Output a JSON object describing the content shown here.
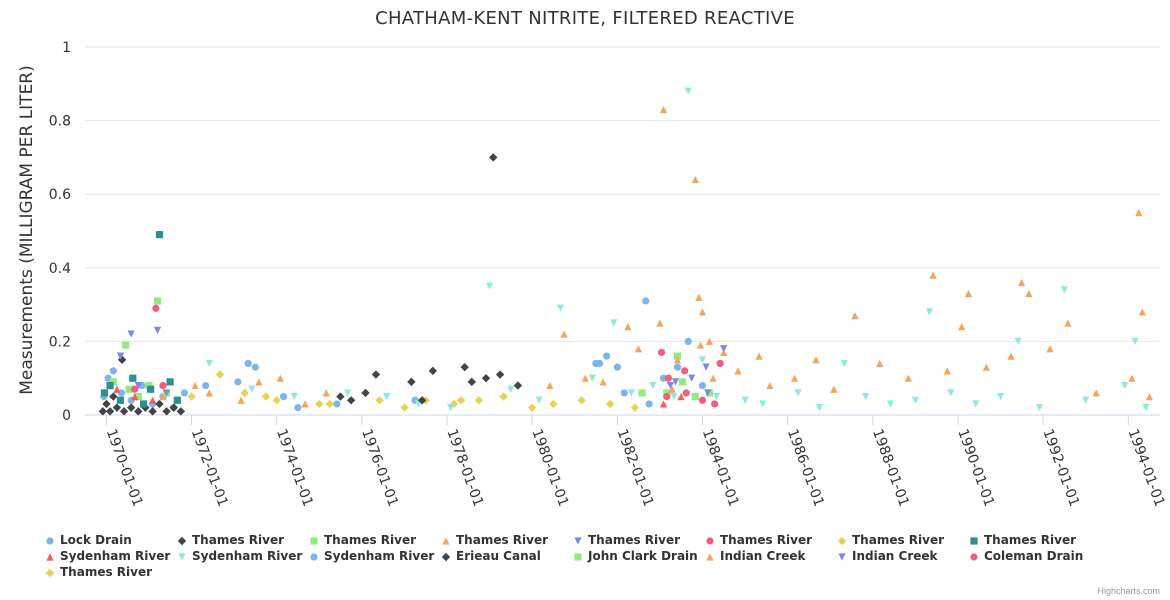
{
  "chart_data": {
    "type": "scatter",
    "title": "CHATHAM-KENT NITRITE, FILTERED REACTIVE",
    "ylabel": "Measurements (MILLIGRAM PER LITER)",
    "xlabel": "",
    "xlim": [
      "1969-07-01",
      "1994-09-30"
    ],
    "ylim": [
      0,
      1
    ],
    "yticks": [
      0,
      0.2,
      0.4,
      0.6,
      0.8,
      1
    ],
    "ytick_labels": [
      "0",
      "0.2",
      "0.4",
      "0.6",
      "0.8",
      "1"
    ],
    "xticks": [
      "1970-01-01",
      "1972-01-01",
      "1974-01-01",
      "1976-01-01",
      "1978-01-01",
      "1980-01-01",
      "1982-01-01",
      "1984-01-01",
      "1986-01-01",
      "1988-01-01",
      "1990-01-01",
      "1992-01-01",
      "1994-01-01"
    ],
    "grid": "horizontal",
    "legend_position": "bottom",
    "series": [
      {
        "name": "Lock Drain",
        "color": "#7cb5ec",
        "marker": "circle",
        "points": [
          [
            "1969-12-10",
            0.05
          ],
          [
            "1970-01-15",
            0.1
          ],
          [
            "1970-03-01",
            0.12
          ],
          [
            "1970-05-10",
            0.06
          ],
          [
            "1970-08-01",
            0.04
          ],
          [
            "1970-11-01",
            0.08
          ],
          [
            "1971-02-01",
            0.03
          ],
          [
            "1971-05-01",
            0.05
          ],
          [
            "1971-08-01",
            0.02
          ],
          [
            "1971-11-01",
            0.06
          ],
          [
            "1972-05-01",
            0.08
          ],
          [
            "1973-02-01",
            0.09
          ],
          [
            "1973-05-01",
            0.14
          ],
          [
            "1973-07-01",
            0.13
          ],
          [
            "1974-03-01",
            0.05
          ],
          [
            "1974-07-01",
            0.02
          ],
          [
            "1975-06-01",
            0.03
          ],
          [
            "1977-04-01",
            0.04
          ],
          [
            "1981-07-01",
            0.14
          ],
          [
            "1981-10-01",
            0.16
          ],
          [
            "1982-03-01",
            0.06
          ],
          [
            "1982-09-01",
            0.31
          ],
          [
            "1983-02-01",
            0.1
          ],
          [
            "1983-06-01",
            0.13
          ],
          [
            "1983-09-01",
            0.2
          ],
          [
            "1984-01-01",
            0.08
          ]
        ]
      },
      {
        "name": "Thames River",
        "color": "#434348",
        "marker": "diamond",
        "points": [
          [
            "1969-12-01",
            0.01
          ],
          [
            "1970-01-01",
            0.03
          ],
          [
            "1970-02-01",
            0.01
          ],
          [
            "1970-03-01",
            0.05
          ],
          [
            "1970-04-01",
            0.02
          ],
          [
            "1970-05-15",
            0.15
          ],
          [
            "1970-06-01",
            0.01
          ],
          [
            "1970-08-01",
            0.02
          ],
          [
            "1970-10-01",
            0.01
          ],
          [
            "1970-12-01",
            0.02
          ],
          [
            "1971-02-01",
            0.01
          ],
          [
            "1971-04-01",
            0.03
          ],
          [
            "1971-06-01",
            0.01
          ],
          [
            "1971-08-01",
            0.02
          ],
          [
            "1971-10-01",
            0.01
          ],
          [
            "1975-07-01",
            0.05
          ],
          [
            "1976-05-01",
            0.11
          ],
          [
            "1977-03-01",
            0.09
          ],
          [
            "1977-09-01",
            0.12
          ],
          [
            "1978-06-01",
            0.13
          ],
          [
            "1978-12-01",
            0.1
          ],
          [
            "1979-02-01",
            0.7
          ],
          [
            "1979-04-01",
            0.11
          ],
          [
            "1979-09-01",
            0.08
          ]
        ]
      },
      {
        "name": "Thames River",
        "color": "#90ed7d",
        "marker": "square",
        "points": [
          [
            "1970-03-01",
            0.09
          ],
          [
            "1970-06-15",
            0.19
          ],
          [
            "1970-07-15",
            0.07
          ],
          [
            "1970-10-01",
            0.05
          ],
          [
            "1971-01-01",
            0.08
          ],
          [
            "1971-03-15",
            0.31
          ],
          [
            "1971-06-01",
            0.06
          ],
          [
            "1983-03-01",
            0.06
          ],
          [
            "1983-06-01",
            0.16
          ],
          [
            "1983-11-01",
            0.05
          ],
          [
            "1984-03-01",
            0.06
          ]
        ]
      },
      {
        "name": "Thames River",
        "color": "#f7a35c",
        "marker": "triangle",
        "points": [
          [
            "1971-05-01",
            0.05
          ],
          [
            "1972-02-01",
            0.08
          ],
          [
            "1972-06-01",
            0.06
          ],
          [
            "1973-03-01",
            0.04
          ],
          [
            "1973-08-01",
            0.09
          ],
          [
            "1974-02-01",
            0.1
          ],
          [
            "1974-09-01",
            0.03
          ],
          [
            "1975-03-01",
            0.06
          ],
          [
            "1980-06-01",
            0.08
          ],
          [
            "1980-10-01",
            0.22
          ],
          [
            "1981-04-01",
            0.1
          ],
          [
            "1981-09-01",
            0.09
          ],
          [
            "1982-04-01",
            0.24
          ],
          [
            "1982-07-01",
            0.18
          ],
          [
            "1983-01-01",
            0.25
          ],
          [
            "1983-02-01",
            0.83
          ],
          [
            "1983-06-01",
            0.15
          ],
          [
            "1983-11-01",
            0.64
          ],
          [
            "1983-12-01",
            0.32
          ],
          [
            "1984-01-01",
            0.28
          ],
          [
            "1984-03-01",
            0.2
          ],
          [
            "1984-07-01",
            0.17
          ],
          [
            "1984-11-01",
            0.12
          ],
          [
            "1985-05-01",
            0.16
          ],
          [
            "1985-08-01",
            0.08
          ],
          [
            "1986-03-01",
            0.1
          ],
          [
            "1986-09-01",
            0.15
          ],
          [
            "1987-02-01",
            0.07
          ],
          [
            "1987-08-01",
            0.27
          ],
          [
            "1988-03-01",
            0.14
          ],
          [
            "1988-11-01",
            0.1
          ],
          [
            "1989-06-01",
            0.38
          ],
          [
            "1989-10-01",
            0.12
          ],
          [
            "1990-02-01",
            0.24
          ],
          [
            "1990-04-01",
            0.33
          ],
          [
            "1990-09-01",
            0.13
          ],
          [
            "1991-04-01",
            0.16
          ],
          [
            "1991-07-01",
            0.36
          ],
          [
            "1991-09-01",
            0.33
          ],
          [
            "1992-03-01",
            0.18
          ],
          [
            "1992-08-01",
            0.25
          ],
          [
            "1993-04-01",
            0.06
          ],
          [
            "1994-02-01",
            0.1
          ],
          [
            "1994-04-01",
            0.55
          ],
          [
            "1994-05-01",
            0.28
          ],
          [
            "1994-07-01",
            0.05
          ]
        ]
      },
      {
        "name": "Thames River",
        "color": "#8085e9",
        "marker": "triangle-down",
        "points": [
          [
            "1970-05-01",
            0.16
          ],
          [
            "1970-08-01",
            0.22
          ],
          [
            "1970-10-01",
            0.08
          ],
          [
            "1971-03-15",
            0.23
          ],
          [
            "1971-06-01",
            0.06
          ],
          [
            "1983-04-01",
            0.08
          ],
          [
            "1983-10-01",
            0.1
          ],
          [
            "1984-02-01",
            0.13
          ],
          [
            "1984-07-01",
            0.18
          ]
        ]
      },
      {
        "name": "Thames River",
        "color": "#f15c80",
        "marker": "circle",
        "points": [
          [
            "1970-09-01",
            0.07
          ],
          [
            "1971-03-01",
            0.29
          ],
          [
            "1971-05-01",
            0.08
          ],
          [
            "1983-01-15",
            0.17
          ],
          [
            "1983-03-01",
            0.05
          ],
          [
            "1983-08-01",
            0.12
          ],
          [
            "1984-01-01",
            0.04
          ],
          [
            "1984-06-01",
            0.14
          ]
        ]
      },
      {
        "name": "Thames River",
        "color": "#e4d354",
        "marker": "diamond",
        "points": [
          [
            "1972-01-01",
            0.05
          ],
          [
            "1972-09-01",
            0.11
          ],
          [
            "1973-04-01",
            0.06
          ],
          [
            "1974-01-01",
            0.04
          ],
          [
            "1975-01-01",
            0.03
          ],
          [
            "1976-06-01",
            0.04
          ],
          [
            "1977-01-01",
            0.02
          ],
          [
            "1977-07-01",
            0.04
          ],
          [
            "1978-03-01",
            0.03
          ],
          [
            "1978-10-01",
            0.04
          ],
          [
            "1979-05-01",
            0.05
          ],
          [
            "1980-01-01",
            0.02
          ],
          [
            "1980-07-01",
            0.03
          ],
          [
            "1981-03-01",
            0.04
          ],
          [
            "1981-11-01",
            0.03
          ],
          [
            "1982-06-01",
            0.02
          ]
        ]
      },
      {
        "name": "Thames River",
        "color": "#2b908f",
        "marker": "square",
        "points": [
          [
            "1969-12-15",
            0.06
          ],
          [
            "1970-02-01",
            0.08
          ],
          [
            "1970-05-01",
            0.04
          ],
          [
            "1970-08-15",
            0.1
          ],
          [
            "1970-11-15",
            0.03
          ],
          [
            "1971-01-15",
            0.07
          ],
          [
            "1971-04-01",
            0.49
          ],
          [
            "1971-07-01",
            0.09
          ],
          [
            "1971-09-01",
            0.04
          ]
        ]
      },
      {
        "name": "Sydenham River",
        "color": "#f45b5b",
        "marker": "triangle",
        "points": [
          [
            "1970-04-01",
            0.07
          ],
          [
            "1970-09-01",
            0.05
          ],
          [
            "1971-02-01",
            0.04
          ],
          [
            "1983-02-01",
            0.03
          ],
          [
            "1983-07-01",
            0.05
          ]
        ]
      },
      {
        "name": "Sydenham River",
        "color": "#91e8e1",
        "marker": "triangle-down",
        "points": [
          [
            "1972-06-01",
            0.14
          ],
          [
            "1973-06-01",
            0.07
          ],
          [
            "1974-06-01",
            0.05
          ],
          [
            "1975-09-01",
            0.06
          ],
          [
            "1976-08-01",
            0.05
          ],
          [
            "1977-05-01",
            0.03
          ],
          [
            "1978-02-01",
            0.02
          ],
          [
            "1979-01-01",
            0.35
          ],
          [
            "1979-07-01",
            0.07
          ],
          [
            "1980-03-01",
            0.04
          ],
          [
            "1980-09-01",
            0.29
          ],
          [
            "1981-06-01",
            0.1
          ],
          [
            "1981-12-01",
            0.25
          ],
          [
            "1982-05-01",
            0.06
          ],
          [
            "1982-11-01",
            0.08
          ],
          [
            "1983-05-01",
            0.05
          ],
          [
            "1983-09-01",
            0.88
          ],
          [
            "1984-01-01",
            0.15
          ],
          [
            "1984-05-01",
            0.05
          ],
          [
            "1985-01-01",
            0.04
          ],
          [
            "1985-06-01",
            0.03
          ],
          [
            "1986-04-01",
            0.06
          ],
          [
            "1986-10-01",
            0.02
          ],
          [
            "1987-05-01",
            0.14
          ],
          [
            "1987-11-01",
            0.05
          ],
          [
            "1988-06-01",
            0.03
          ],
          [
            "1989-01-01",
            0.04
          ],
          [
            "1989-05-01",
            0.28
          ],
          [
            "1989-11-01",
            0.06
          ],
          [
            "1990-06-01",
            0.03
          ],
          [
            "1991-01-01",
            0.05
          ],
          [
            "1991-06-01",
            0.2
          ],
          [
            "1991-12-01",
            0.02
          ],
          [
            "1992-07-01",
            0.34
          ],
          [
            "1993-01-01",
            0.04
          ],
          [
            "1993-12-01",
            0.08
          ],
          [
            "1994-03-01",
            0.2
          ],
          [
            "1994-06-01",
            0.02
          ]
        ]
      },
      {
        "name": "Sydenham River",
        "color": "#7cb5ec",
        "marker": "circle",
        "points": [
          [
            "1981-08-01",
            0.14
          ],
          [
            "1982-01-01",
            0.13
          ],
          [
            "1982-10-01",
            0.03
          ]
        ]
      },
      {
        "name": "Erieau Canal",
        "color": "#434348",
        "marker": "diamond",
        "points": [
          [
            "1975-10-01",
            0.04
          ],
          [
            "1976-02-01",
            0.06
          ],
          [
            "1977-06-01",
            0.04
          ],
          [
            "1978-08-01",
            0.09
          ]
        ]
      },
      {
        "name": "John Clark Drain",
        "color": "#90ed7d",
        "marker": "square",
        "points": [
          [
            "1982-08-01",
            0.06
          ],
          [
            "1983-07-15",
            0.09
          ]
        ]
      },
      {
        "name": "Indian Creek",
        "color": "#f7a35c",
        "marker": "triangle",
        "points": [
          [
            "1983-04-15",
            0.07
          ],
          [
            "1983-12-15",
            0.19
          ],
          [
            "1984-04-01",
            0.1
          ]
        ]
      },
      {
        "name": "Indian Creek",
        "color": "#8085e9",
        "marker": "triangle-down",
        "points": [
          [
            "1983-05-15",
            0.09
          ],
          [
            "1984-02-15",
            0.06
          ]
        ]
      },
      {
        "name": "Coleman Drain",
        "color": "#f15c80",
        "marker": "circle",
        "points": [
          [
            "1983-03-15",
            0.1
          ],
          [
            "1983-08-15",
            0.06
          ],
          [
            "1984-04-15",
            0.03
          ]
        ]
      },
      {
        "name": "Thames River",
        "color": "#e4d354",
        "marker": "diamond",
        "points": [
          [
            "1973-10-01",
            0.05
          ],
          [
            "1975-04-01",
            0.03
          ],
          [
            "1978-05-01",
            0.04
          ]
        ]
      }
    ]
  },
  "credits": "Highcharts.com"
}
